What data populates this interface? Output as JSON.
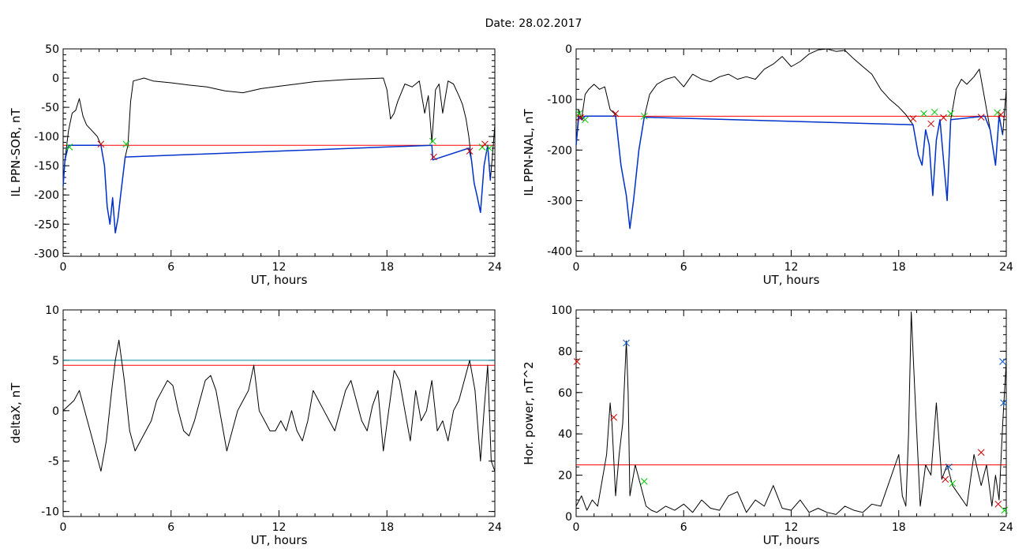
{
  "figure": {
    "title": "Date:  28.02.2017"
  },
  "chart_data": [
    {
      "type": "line",
      "title": "",
      "xlabel": "UT, hours",
      "ylabel": "IL PPN-SOR, nT",
      "xlim": [
        0,
        24
      ],
      "ylim": [
        -305,
        50
      ],
      "xticks": [
        "0",
        "6",
        "12",
        "18",
        "24"
      ],
      "yticks": [
        "50",
        "0",
        "-50",
        "-100",
        "-150",
        "-200",
        "-250",
        "-300"
      ],
      "threshold": {
        "value": -115,
        "color": "#ff0000"
      },
      "series": [
        {
          "color": "#000000",
          "x": [
            0,
            0.1,
            0.3,
            0.5,
            0.7,
            0.9,
            1.1,
            1.3,
            1.6,
            1.9,
            2.1,
            2.3,
            2.45,
            2.6,
            2.75,
            2.9,
            3.05,
            3.2,
            3.45,
            3.6,
            3.75,
            3.9,
            4.5,
            5,
            6,
            7,
            8,
            9,
            10,
            11,
            12,
            13,
            14,
            15,
            16,
            17,
            17.8,
            18,
            18.2,
            18.4,
            18.6,
            19,
            19.4,
            19.8,
            20.1,
            20.3,
            20.5,
            20.7,
            20.9,
            21.1,
            21.4,
            21.7,
            22,
            22.2,
            22.4,
            22.55,
            22.7,
            22.85,
            23,
            23.2,
            23.4,
            23.6,
            23.75,
            23.9,
            24
          ],
          "y": [
            -185,
            -140,
            -90,
            -60,
            -55,
            -35,
            -65,
            -80,
            -90,
            -100,
            -115,
            -150,
            -220,
            -250,
            -205,
            -265,
            -240,
            -200,
            -135,
            -115,
            -40,
            -5,
            0,
            -5,
            -8,
            -12,
            -15,
            -22,
            -25,
            -18,
            -14,
            -10,
            -6,
            -4,
            -2,
            -1,
            0,
            -20,
            -70,
            -60,
            -40,
            -10,
            -15,
            -5,
            -60,
            -30,
            -110,
            -20,
            -10,
            -60,
            -5,
            -10,
            -30,
            -45,
            -70,
            -100,
            -140,
            -180,
            -200,
            -230,
            -150,
            -115,
            -175,
            -120,
            -80
          ]
        },
        {
          "color": "#0033cc",
          "x": [
            0,
            0.1,
            0.3,
            2.1,
            2.3,
            2.45,
            2.6,
            2.75,
            2.9,
            3.05,
            3.2,
            3.45,
            20.5,
            20.55,
            22.55,
            22.7,
            22.85,
            23,
            23.2,
            23.4,
            23.6,
            23.75
          ],
          "y": [
            -185,
            -140,
            -115,
            -115,
            -150,
            -220,
            -250,
            -205,
            -265,
            -240,
            -200,
            -135,
            -115,
            -140,
            -120,
            -140,
            -180,
            -200,
            -230,
            -150,
            -115,
            -175
          ]
        }
      ],
      "markers": [
        {
          "x": 0.35,
          "y": -118,
          "color": "#00cc00"
        },
        {
          "x": 2.1,
          "y": -113,
          "color": "#cc0000"
        },
        {
          "x": 3.5,
          "y": -113,
          "color": "#00cc00"
        },
        {
          "x": 20.55,
          "y": -108,
          "color": "#00cc00"
        },
        {
          "x": 20.6,
          "y": -135,
          "color": "#cc0000"
        },
        {
          "x": 22.6,
          "y": -125,
          "color": "#cc0000"
        },
        {
          "x": 23.3,
          "y": -118,
          "color": "#00cc00"
        },
        {
          "x": 23.45,
          "y": -113,
          "color": "#cc0000"
        },
        {
          "x": 23.7,
          "y": -120,
          "color": "#00cc00"
        }
      ]
    },
    {
      "type": "line",
      "title": "",
      "xlabel": "UT, hours",
      "ylabel": "IL PPN-NAL, nT",
      "xlim": [
        0,
        24
      ],
      "ylim": [
        -410,
        0
      ],
      "xticks": [
        "0",
        "6",
        "12",
        "18",
        "24"
      ],
      "yticks": [
        "0",
        "-100",
        "-200",
        "-300",
        "-400"
      ],
      "threshold": {
        "value": -133,
        "color": "#ff0000"
      },
      "series": [
        {
          "color": "#000000",
          "x": [
            0,
            0.15,
            0.3,
            0.5,
            0.7,
            1,
            1.3,
            1.6,
            1.9,
            2.2,
            2.5,
            2.8,
            3.0,
            3.2,
            3.5,
            3.8,
            4.1,
            4.5,
            5,
            5.5,
            6,
            6.5,
            7,
            7.5,
            8,
            8.5,
            9,
            9.5,
            10,
            10.5,
            11,
            11.5,
            12,
            12.5,
            13,
            13.5,
            14,
            14.5,
            15,
            15.5,
            16,
            16.5,
            17,
            17.5,
            18,
            18.4,
            18.8,
            19.1,
            19.3,
            19.5,
            19.7,
            19.9,
            20.1,
            20.3,
            20.5,
            20.7,
            20.9,
            21.2,
            21.5,
            21.8,
            22.2,
            22.5,
            22.8,
            23.1,
            23.4,
            23.6,
            23.8,
            24
          ],
          "y": [
            -190,
            -120,
            -140,
            -90,
            -80,
            -70,
            -80,
            -75,
            -120,
            -130,
            -230,
            -290,
            -355,
            -300,
            -200,
            -135,
            -90,
            -70,
            -60,
            -55,
            -75,
            -50,
            -60,
            -65,
            -55,
            -50,
            -60,
            -55,
            -60,
            -40,
            -30,
            -15,
            -35,
            -25,
            -10,
            -2,
            0,
            -5,
            -3,
            -20,
            -35,
            -50,
            -80,
            -100,
            -115,
            -130,
            -150,
            -210,
            -230,
            -160,
            -190,
            -290,
            -180,
            -140,
            -220,
            -300,
            -140,
            -80,
            -60,
            -70,
            -55,
            -40,
            -100,
            -160,
            -230,
            -130,
            -170,
            -80
          ]
        },
        {
          "color": "#0033cc",
          "x": [
            0,
            0.15,
            0.3,
            0.5,
            0.7,
            2.2,
            2.5,
            2.8,
            3.0,
            3.2,
            3.5,
            3.8,
            18.8,
            19.1,
            19.3,
            19.5,
            19.7,
            19.9,
            20.1,
            20.3,
            20.5,
            20.7,
            20.9,
            22.8,
            23.1,
            23.4,
            23.6,
            23.8
          ],
          "y": [
            -190,
            -133,
            -140,
            -133,
            -133,
            -133,
            -230,
            -290,
            -355,
            -300,
            -200,
            -135,
            -150,
            -210,
            -230,
            -160,
            -190,
            -290,
            -180,
            -140,
            -220,
            -300,
            -140,
            -133,
            -160,
            -230,
            -133,
            -170
          ]
        }
      ],
      "markers": [
        {
          "x": 0.15,
          "y": -128,
          "color": "#00cc00"
        },
        {
          "x": 0.25,
          "y": -136,
          "color": "#cc0000"
        },
        {
          "x": 0.5,
          "y": -140,
          "color": "#00cc00"
        },
        {
          "x": 2.2,
          "y": -128,
          "color": "#cc0000"
        },
        {
          "x": 3.8,
          "y": -133,
          "color": "#00cc00"
        },
        {
          "x": 18.8,
          "y": -138,
          "color": "#cc0000"
        },
        {
          "x": 19.4,
          "y": -128,
          "color": "#00cc00"
        },
        {
          "x": 19.8,
          "y": -148,
          "color": "#cc0000"
        },
        {
          "x": 20.0,
          "y": -125,
          "color": "#00cc00"
        },
        {
          "x": 20.5,
          "y": -136,
          "color": "#cc0000"
        },
        {
          "x": 20.9,
          "y": -128,
          "color": "#00cc00"
        },
        {
          "x": 22.6,
          "y": -135,
          "color": "#cc0000"
        },
        {
          "x": 23.5,
          "y": -126,
          "color": "#00cc00"
        },
        {
          "x": 23.7,
          "y": -130,
          "color": "#cc0000"
        }
      ]
    },
    {
      "type": "line",
      "title": "",
      "xlabel": "UT, hours",
      "ylabel": "deltaX, nT",
      "xlim": [
        0,
        24
      ],
      "ylim": [
        -10.5,
        10
      ],
      "xticks": [
        "0",
        "6",
        "12",
        "18",
        "24"
      ],
      "yticks": [
        "10",
        "5",
        "0",
        "-5",
        "-10"
      ],
      "hlines": [
        {
          "value": 5.0,
          "color": "#008899"
        },
        {
          "value": 4.5,
          "color": "#ff0000"
        }
      ],
      "series": [
        {
          "color": "#000000",
          "x": [
            0,
            0.3,
            0.6,
            0.9,
            1.2,
            1.5,
            1.8,
            2.1,
            2.4,
            2.7,
            2.9,
            3.1,
            3.4,
            3.7,
            4.0,
            4.3,
            4.6,
            4.9,
            5.2,
            5.5,
            5.8,
            6.1,
            6.4,
            6.7,
            7.0,
            7.3,
            7.6,
            7.9,
            8.2,
            8.5,
            8.8,
            9.1,
            9.4,
            9.7,
            10.0,
            10.3,
            10.6,
            10.9,
            11.2,
            11.5,
            11.8,
            12.1,
            12.4,
            12.7,
            13.0,
            13.3,
            13.6,
            13.9,
            14.2,
            14.5,
            14.8,
            15.1,
            15.4,
            15.7,
            16.0,
            16.3,
            16.6,
            16.9,
            17.2,
            17.5,
            17.8,
            18.1,
            18.4,
            18.7,
            19.0,
            19.3,
            19.6,
            19.9,
            20.2,
            20.5,
            20.8,
            21.1,
            21.4,
            21.7,
            22.0,
            22.3,
            22.6,
            22.9,
            23.2,
            23.4,
            23.6,
            23.8,
            24
          ],
          "y": [
            0,
            0.5,
            1,
            2,
            0,
            -2,
            -4,
            -6,
            -3,
            2,
            5,
            7,
            3,
            -2,
            -4,
            -3,
            -2,
            -1,
            1,
            2,
            3,
            2.5,
            0,
            -2,
            -2.5,
            -1,
            1,
            3,
            3.5,
            2,
            -1,
            -4,
            -2,
            0,
            1,
            2,
            4.5,
            0,
            -1,
            -2,
            -2,
            -1,
            -2,
            0,
            -2,
            -3,
            -1,
            2,
            1,
            0,
            -1,
            -2,
            0,
            2,
            3,
            1,
            -1,
            -2,
            0.5,
            2,
            -4,
            0,
            4,
            3,
            0,
            -3,
            2,
            -1,
            0,
            3,
            -2,
            -1,
            -3,
            0,
            1,
            3,
            5,
            2,
            -5,
            0,
            4.5,
            -5,
            -6
          ]
        }
      ]
    },
    {
      "type": "line",
      "title": "",
      "xlabel": "UT, hours",
      "ylabel": "Hor. power, nT^2",
      "xlim": [
        0,
        24
      ],
      "ylim": [
        0,
        100
      ],
      "xticks": [
        "0",
        "6",
        "12",
        "18",
        "24"
      ],
      "yticks": [
        "100",
        "80",
        "60",
        "40",
        "20",
        "0"
      ],
      "threshold": {
        "value": 25,
        "color": "#ff0000"
      },
      "series": [
        {
          "color": "#000000",
          "x": [
            0,
            0.3,
            0.6,
            0.9,
            1.2,
            1.5,
            1.7,
            1.9,
            2.0,
            2.2,
            2.4,
            2.6,
            2.8,
            2.9,
            3.0,
            3.3,
            3.6,
            3.9,
            4.2,
            4.5,
            5,
            5.5,
            6,
            6.5,
            7,
            7.5,
            8,
            8.5,
            9,
            9.5,
            10,
            10.5,
            11,
            11.5,
            12,
            12.5,
            13,
            13.5,
            14,
            14.5,
            15,
            15.5,
            16,
            16.5,
            17,
            17.4,
            17.8,
            18.0,
            18.2,
            18.4,
            18.55,
            18.7,
            18.9,
            19.2,
            19.5,
            19.8,
            20.1,
            20.4,
            20.7,
            21.0,
            21.4,
            21.8,
            22.2,
            22.6,
            22.9,
            23.2,
            23.4,
            23.6,
            23.8,
            24
          ],
          "y": [
            5,
            10,
            3,
            8,
            5,
            20,
            30,
            55,
            45,
            10,
            30,
            45,
            85,
            60,
            10,
            25,
            15,
            5,
            3,
            2,
            5,
            3,
            6,
            2,
            8,
            4,
            3,
            10,
            12,
            2,
            8,
            5,
            15,
            4,
            3,
            8,
            2,
            4,
            2,
            1,
            5,
            3,
            2,
            6,
            5,
            15,
            25,
            30,
            10,
            5,
            40,
            99,
            60,
            5,
            25,
            20,
            55,
            18,
            25,
            15,
            10,
            5,
            30,
            15,
            25,
            5,
            20,
            8,
            45,
            75
          ]
        }
      ],
      "markers": [
        {
          "x": 0.05,
          "y": 75,
          "color": "#cc0000"
        },
        {
          "x": 2.1,
          "y": 48,
          "color": "#cc0000"
        },
        {
          "x": 2.8,
          "y": 84,
          "color": "#0055cc"
        },
        {
          "x": 3.8,
          "y": 17,
          "color": "#00cc00"
        },
        {
          "x": 20.6,
          "y": 18,
          "color": "#cc0000"
        },
        {
          "x": 20.8,
          "y": 24,
          "color": "#0055cc"
        },
        {
          "x": 21.0,
          "y": 16,
          "color": "#00cc00"
        },
        {
          "x": 22.6,
          "y": 31,
          "color": "#cc0000"
        },
        {
          "x": 23.55,
          "y": 6,
          "color": "#cc0000"
        },
        {
          "x": 23.8,
          "y": 75,
          "color": "#0055cc"
        },
        {
          "x": 23.85,
          "y": 55,
          "color": "#0055cc"
        },
        {
          "x": 23.9,
          "y": 3,
          "color": "#00cc00"
        }
      ]
    }
  ]
}
